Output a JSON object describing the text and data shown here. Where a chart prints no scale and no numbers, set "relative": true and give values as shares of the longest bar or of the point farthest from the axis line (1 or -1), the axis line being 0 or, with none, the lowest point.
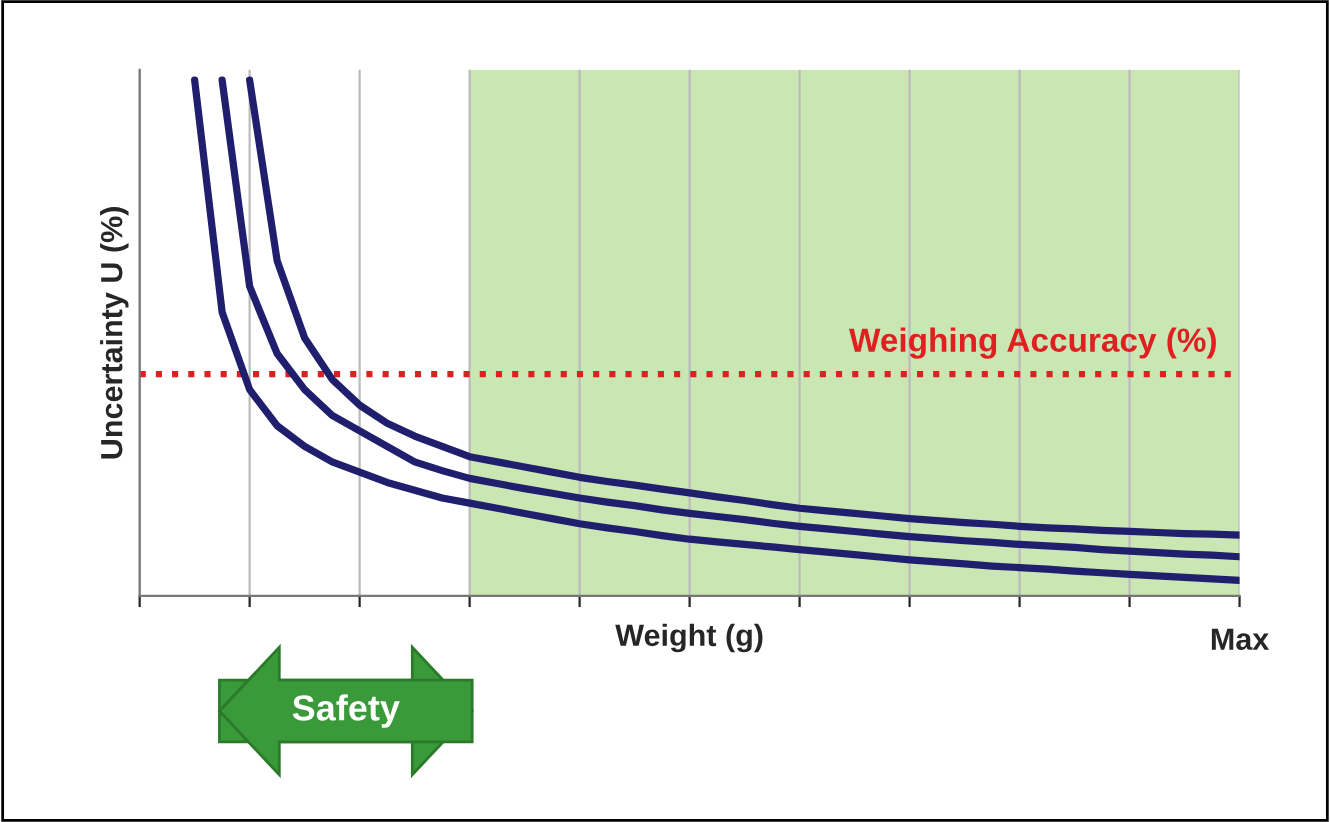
{
  "chart_data": {
    "type": "line",
    "relative": true,
    "xlabel": "Weight (g)",
    "ylabel": "Uncertainty U (%)",
    "tick_labels": false,
    "grid": "x",
    "line_style": "solid",
    "categories": [
      null,
      null,
      null,
      null,
      null,
      null,
      null,
      null,
      null,
      null,
      null,
      null,
      null,
      null,
      null,
      null,
      null,
      null,
      null,
      null,
      null,
      null,
      null,
      null,
      null,
      null,
      null,
      null,
      null,
      null,
      null,
      null,
      null,
      null,
      null,
      null,
      null,
      null,
      null,
      null,
      null
    ],
    "series": [
      {
        "color": "#1f1f6e",
        "values": [
          null,
          null,
          1.0,
          0.55,
          0.4,
          0.33,
          0.29,
          0.26,
          0.24,
          0.22,
          0.205,
          0.19,
          0.18,
          0.17,
          0.16,
          0.15,
          0.14,
          0.132,
          0.125,
          0.117,
          0.11,
          0.105,
          0.1,
          0.095,
          0.09,
          0.085,
          0.08,
          0.075,
          0.07,
          0.066,
          0.062,
          0.058,
          0.055,
          0.052,
          0.048,
          0.045,
          0.042,
          0.039,
          0.036,
          0.033,
          0.03
        ]
      },
      {
        "color": "#1f1f6e",
        "values": [
          null,
          null,
          null,
          1.0,
          0.6,
          0.47,
          0.4,
          0.35,
          0.32,
          0.29,
          0.26,
          0.243,
          0.228,
          0.218,
          0.208,
          0.199,
          0.19,
          0.182,
          0.175,
          0.167,
          0.16,
          0.154,
          0.148,
          0.141,
          0.135,
          0.13,
          0.125,
          0.12,
          0.115,
          0.111,
          0.107,
          0.104,
          0.1,
          0.097,
          0.094,
          0.09,
          0.087,
          0.084,
          0.081,
          0.079,
          0.076
        ]
      },
      {
        "color": "#1f1f6e",
        "values": [
          null,
          null,
          null,
          null,
          1.0,
          0.65,
          0.5,
          0.42,
          0.37,
          0.335,
          0.31,
          0.29,
          0.27,
          0.26,
          0.25,
          0.24,
          0.23,
          0.222,
          0.215,
          0.207,
          0.2,
          0.192,
          0.185,
          0.177,
          0.17,
          0.165,
          0.16,
          0.155,
          0.15,
          0.146,
          0.142,
          0.139,
          0.135,
          0.132,
          0.13,
          0.127,
          0.125,
          0.123,
          0.121,
          0.12,
          0.118
        ]
      }
    ],
    "ref_lines": [
      {
        "axis": "y",
        "value": 0.43,
        "label": "Weighing Accuracy (%)",
        "color": "#e02020",
        "line_style": "dotted"
      }
    ],
    "annotations": [
      "Max",
      "Safety"
    ]
  }
}
